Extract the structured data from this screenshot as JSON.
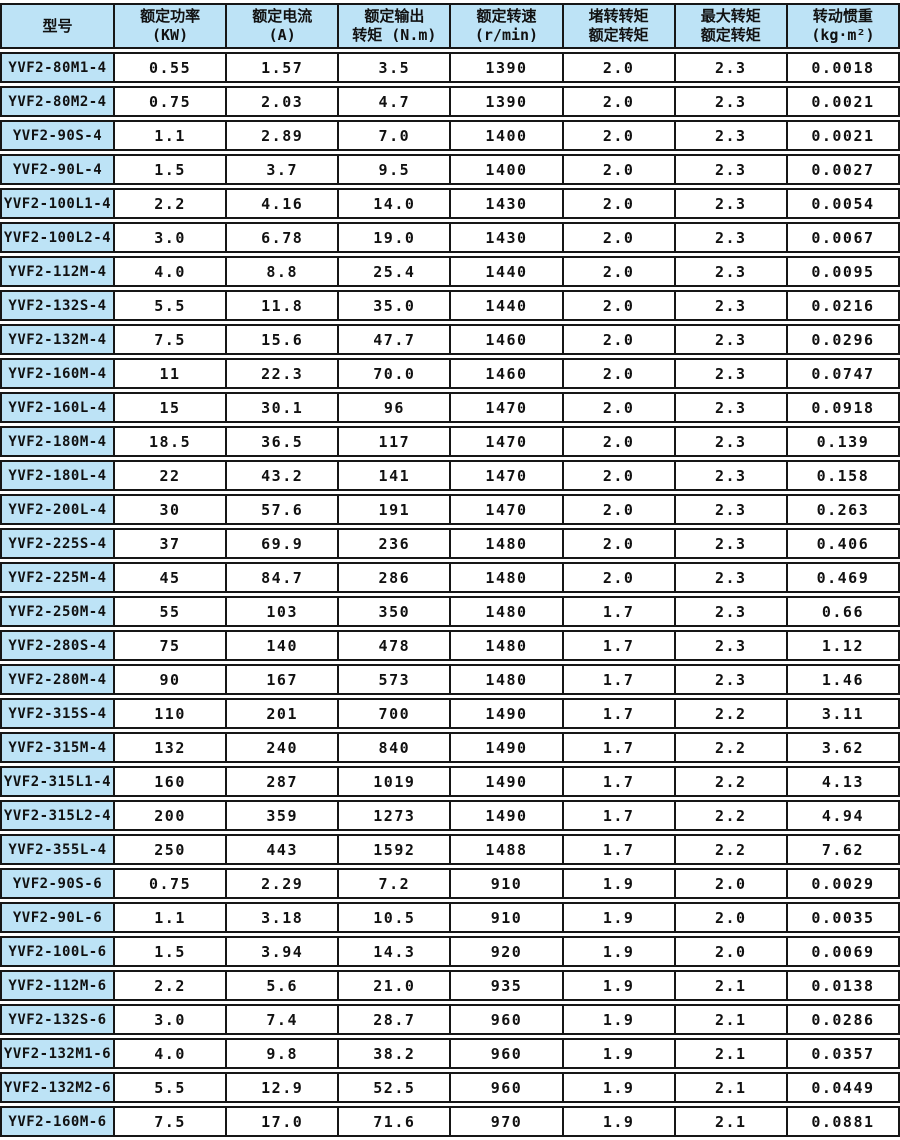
{
  "colors": {
    "cell_blue": "#bde3f6",
    "border": "#161616",
    "text": "#111111",
    "background": "#ffffff"
  },
  "header": {
    "cells": [
      {
        "line1": "型号",
        "line2": ""
      },
      {
        "line1": "额定功率",
        "line2": "(KW)"
      },
      {
        "line1": "额定电流",
        "line2": "(A)"
      },
      {
        "line1": "额定输出",
        "line2": "转矩 (N.m)"
      },
      {
        "line1": "额定转速",
        "line2": "(r/min)"
      },
      {
        "line1": "堵转转矩",
        "line2": "额定转矩"
      },
      {
        "line1": "最大转矩",
        "line2": "额定转矩"
      },
      {
        "line1": "转动惯重",
        "line2": "(kg·m²)"
      }
    ]
  },
  "table": {
    "rows": [
      [
        "YVF2-80M1-4",
        "0.55",
        "1.57",
        "3.5",
        "1390",
        "2.0",
        "2.3",
        "0.0018"
      ],
      [
        "YVF2-80M2-4",
        "0.75",
        "2.03",
        "4.7",
        "1390",
        "2.0",
        "2.3",
        "0.0021"
      ],
      [
        "YVF2-90S-4",
        "1.1",
        "2.89",
        "7.0",
        "1400",
        "2.0",
        "2.3",
        "0.0021"
      ],
      [
        "YVF2-90L-4",
        "1.5",
        "3.7",
        "9.5",
        "1400",
        "2.0",
        "2.3",
        "0.0027"
      ],
      [
        "YVF2-100L1-4",
        "2.2",
        "4.16",
        "14.0",
        "1430",
        "2.0",
        "2.3",
        "0.0054"
      ],
      [
        "YVF2-100L2-4",
        "3.0",
        "6.78",
        "19.0",
        "1430",
        "2.0",
        "2.3",
        "0.0067"
      ],
      [
        "YVF2-112M-4",
        "4.0",
        "8.8",
        "25.4",
        "1440",
        "2.0",
        "2.3",
        "0.0095"
      ],
      [
        "YVF2-132S-4",
        "5.5",
        "11.8",
        "35.0",
        "1440",
        "2.0",
        "2.3",
        "0.0216"
      ],
      [
        "YVF2-132M-4",
        "7.5",
        "15.6",
        "47.7",
        "1460",
        "2.0",
        "2.3",
        "0.0296"
      ],
      [
        "YVF2-160M-4",
        "11",
        "22.3",
        "70.0",
        "1460",
        "2.0",
        "2.3",
        "0.0747"
      ],
      [
        "YVF2-160L-4",
        "15",
        "30.1",
        "96",
        "1470",
        "2.0",
        "2.3",
        "0.0918"
      ],
      [
        "YVF2-180M-4",
        "18.5",
        "36.5",
        "117",
        "1470",
        "2.0",
        "2.3",
        "0.139"
      ],
      [
        "YVF2-180L-4",
        "22",
        "43.2",
        "141",
        "1470",
        "2.0",
        "2.3",
        "0.158"
      ],
      [
        "YVF2-200L-4",
        "30",
        "57.6",
        "191",
        "1470",
        "2.0",
        "2.3",
        "0.263"
      ],
      [
        "YVF2-225S-4",
        "37",
        "69.9",
        "236",
        "1480",
        "2.0",
        "2.3",
        "0.406"
      ],
      [
        "YVF2-225M-4",
        "45",
        "84.7",
        "286",
        "1480",
        "2.0",
        "2.3",
        "0.469"
      ],
      [
        "YVF2-250M-4",
        "55",
        "103",
        "350",
        "1480",
        "1.7",
        "2.3",
        "0.66"
      ],
      [
        "YVF2-280S-4",
        "75",
        "140",
        "478",
        "1480",
        "1.7",
        "2.3",
        "1.12"
      ],
      [
        "YVF2-280M-4",
        "90",
        "167",
        "573",
        "1480",
        "1.7",
        "2.3",
        "1.46"
      ],
      [
        "YVF2-315S-4",
        "110",
        "201",
        "700",
        "1490",
        "1.7",
        "2.2",
        "3.11"
      ],
      [
        "YVF2-315M-4",
        "132",
        "240",
        "840",
        "1490",
        "1.7",
        "2.2",
        "3.62"
      ],
      [
        "YVF2-315L1-4",
        "160",
        "287",
        "1019",
        "1490",
        "1.7",
        "2.2",
        "4.13"
      ],
      [
        "YVF2-315L2-4",
        "200",
        "359",
        "1273",
        "1490",
        "1.7",
        "2.2",
        "4.94"
      ],
      [
        "YVF2-355L-4",
        "250",
        "443",
        "1592",
        "1488",
        "1.7",
        "2.2",
        "7.62"
      ],
      [
        "YVF2-90S-6",
        "0.75",
        "2.29",
        "7.2",
        "910",
        "1.9",
        "2.0",
        "0.0029"
      ],
      [
        "YVF2-90L-6",
        "1.1",
        "3.18",
        "10.5",
        "910",
        "1.9",
        "2.0",
        "0.0035"
      ],
      [
        "YVF2-100L-6",
        "1.5",
        "3.94",
        "14.3",
        "920",
        "1.9",
        "2.0",
        "0.0069"
      ],
      [
        "YVF2-112M-6",
        "2.2",
        "5.6",
        "21.0",
        "935",
        "1.9",
        "2.1",
        "0.0138"
      ],
      [
        "YVF2-132S-6",
        "3.0",
        "7.4",
        "28.7",
        "960",
        "1.9",
        "2.1",
        "0.0286"
      ],
      [
        "YVF2-132M1-6",
        "4.0",
        "9.8",
        "38.2",
        "960",
        "1.9",
        "2.1",
        "0.0357"
      ],
      [
        "YVF2-132M2-6",
        "5.5",
        "12.9",
        "52.5",
        "960",
        "1.9",
        "2.1",
        "0.0449"
      ],
      [
        "YVF2-160M-6",
        "7.5",
        "17.0",
        "71.6",
        "970",
        "1.9",
        "2.1",
        "0.0881"
      ]
    ]
  }
}
